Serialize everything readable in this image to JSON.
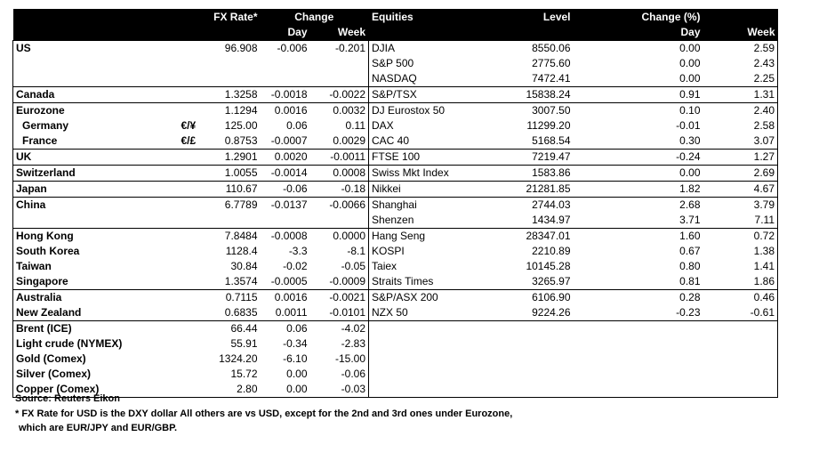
{
  "header": {
    "fx_rate": "FX Rate*",
    "change": "Change",
    "day": "Day",
    "week": "Week",
    "equities": "Equities",
    "level": "Level",
    "change_pct": "Change (%)",
    "eq_day": "Day",
    "eq_week": "Week"
  },
  "rows": [
    {
      "country": "US",
      "sym": "",
      "rate": "96.908",
      "day": "-0.006",
      "week": "-0.201",
      "index": "DJIA",
      "level": "8550.06",
      "eq_day": "0.00",
      "eq_week": "2.59"
    },
    {
      "country": "",
      "sym": "",
      "rate": "",
      "day": "",
      "week": "",
      "index": "S&P 500",
      "level": "2775.60",
      "eq_day": "0.00",
      "eq_week": "2.43"
    },
    {
      "country": "",
      "sym": "",
      "rate": "",
      "day": "",
      "week": "",
      "index": "NASDAQ",
      "level": "7472.41",
      "eq_day": "0.00",
      "eq_week": "2.25"
    },
    {
      "country": "Canada",
      "sym": "",
      "rate": "1.3258",
      "day": "-0.0018",
      "week": "-0.0022",
      "index": "S&P/TSX",
      "level": "15838.24",
      "eq_day": "0.91",
      "eq_week": "1.31"
    },
    {
      "country": "Eurozone",
      "sym": "",
      "rate": "1.1294",
      "day": "0.0016",
      "week": "0.0032",
      "index": "DJ Eurostox 50",
      "level": "3007.50",
      "eq_day": "0.10",
      "eq_week": "2.40"
    },
    {
      "country": "Germany",
      "sym": "€/¥",
      "rate": "125.00",
      "day": "0.06",
      "week": "0.11",
      "index": "DAX",
      "level": "11299.20",
      "eq_day": "-0.01",
      "eq_week": "2.58"
    },
    {
      "country": "France",
      "sym": "€/£",
      "rate": "0.8753",
      "day": "-0.0007",
      "week": "0.0029",
      "index": "CAC 40",
      "level": "5168.54",
      "eq_day": "0.30",
      "eq_week": "3.07"
    },
    {
      "country": "UK",
      "sym": "",
      "rate": "1.2901",
      "day": "0.0020",
      "week": "-0.0011",
      "index": "FTSE 100",
      "level": "7219.47",
      "eq_day": "-0.24",
      "eq_week": "1.27"
    },
    {
      "country": "Switzerland",
      "sym": "",
      "rate": "1.0055",
      "day": "-0.0014",
      "week": "0.0008",
      "index": "Swiss Mkt Index",
      "level": "1583.86",
      "eq_day": "0.00",
      "eq_week": "2.69"
    },
    {
      "country": "Japan",
      "sym": "",
      "rate": "110.67",
      "day": "-0.06",
      "week": "-0.18",
      "index": "Nikkei",
      "level": "21281.85",
      "eq_day": "1.82",
      "eq_week": "4.67"
    },
    {
      "country": "China",
      "sym": "",
      "rate": "6.7789",
      "day": "-0.0137",
      "week": "-0.0066",
      "index": "Shanghai",
      "level": "2744.03",
      "eq_day": "2.68",
      "eq_week": "3.79"
    },
    {
      "country": "",
      "sym": "",
      "rate": "",
      "day": "",
      "week": "",
      "index": "Shenzen",
      "level": "1434.97",
      "eq_day": "3.71",
      "eq_week": "7.11"
    },
    {
      "country": "Hong Kong",
      "sym": "",
      "rate": "7.8484",
      "day": "-0.0008",
      "week": "0.0000",
      "index": "Hang Seng",
      "level": "28347.01",
      "eq_day": "1.60",
      "eq_week": "0.72"
    },
    {
      "country": "South Korea",
      "sym": "",
      "rate": "1128.4",
      "day": "-3.3",
      "week": "-8.1",
      "index": "KOSPI",
      "level": "2210.89",
      "eq_day": "0.67",
      "eq_week": "1.38"
    },
    {
      "country": "Taiwan",
      "sym": "",
      "rate": "30.84",
      "day": "-0.02",
      "week": "-0.05",
      "index": "Taiex",
      "level": "10145.28",
      "eq_day": "0.80",
      "eq_week": "1.41"
    },
    {
      "country": "Singapore",
      "sym": "",
      "rate": "1.3574",
      "day": "-0.0005",
      "week": "-0.0009",
      "index": "Straits Times",
      "level": "3265.97",
      "eq_day": "0.81",
      "eq_week": "1.86"
    },
    {
      "country": "Australia",
      "sym": "",
      "rate": "0.7115",
      "day": "0.0016",
      "week": "-0.0021",
      "index": "S&P/ASX  200",
      "level": "6106.90",
      "eq_day": "0.28",
      "eq_week": "0.46"
    },
    {
      "country": "New Zealand",
      "sym": "",
      "rate": "0.6835",
      "day": "0.0011",
      "week": "-0.0101",
      "index": "NZX 50",
      "level": "9224.26",
      "eq_day": "-0.23",
      "eq_week": "-0.61"
    },
    {
      "country": "Brent (ICE)",
      "sym": "",
      "rate": "66.44",
      "day": "0.06",
      "week": "-4.02",
      "index": "",
      "level": "",
      "eq_day": "",
      "eq_week": ""
    },
    {
      "country": "Light crude (NYMEX)",
      "sym": "",
      "rate": "55.91",
      "day": "-0.34",
      "week": "-2.83",
      "index": "",
      "level": "",
      "eq_day": "",
      "eq_week": ""
    },
    {
      "country": "Gold (Comex)",
      "sym": "",
      "rate": "1324.20",
      "day": "-6.10",
      "week": "-15.00",
      "index": "",
      "level": "",
      "eq_day": "",
      "eq_week": ""
    },
    {
      "country": "Silver (Comex)",
      "sym": "",
      "rate": "15.72",
      "day": "0.00",
      "week": "-0.06",
      "index": "",
      "level": "",
      "eq_day": "",
      "eq_week": ""
    },
    {
      "country": "Copper (Comex)",
      "sym": "",
      "rate": "2.80",
      "day": "0.00",
      "week": "-0.03",
      "index": "",
      "level": "",
      "eq_day": "",
      "eq_week": ""
    }
  ],
  "footer": {
    "source": "Source:  Reuters Eikon",
    "note1": "* FX Rate for USD is the DXY dollar  All others are vs USD, except for the 2nd and 3rd ones under Eurozone,",
    "note2": "which are EUR/JPY and EUR/GBP."
  }
}
